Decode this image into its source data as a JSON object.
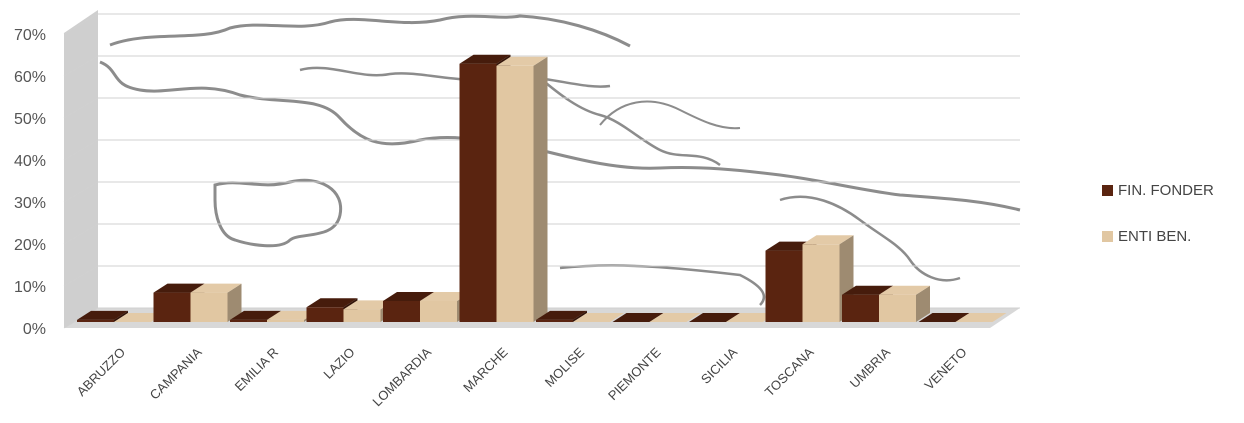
{
  "chart_data": {
    "type": "bar",
    "categories": [
      "ABRUZZO",
      "CAMPANIA",
      "EMILIA R",
      "LAZIO",
      "LOMBARDIA",
      "MARCHE",
      "MOLISE",
      "PIEMONTE",
      "SICILIA",
      "TOSCANA",
      "UMBRIA",
      "VENETO"
    ],
    "series": [
      {
        "name": "FIN. FONDER",
        "color": "#5a2410",
        "values": [
          0.5,
          7,
          0.5,
          3.5,
          5,
          61.5,
          0.5,
          0,
          0,
          17,
          6.5,
          0
        ]
      },
      {
        "name": "ENTI BEN.",
        "color": "#e1c7a2",
        "values": [
          0,
          7,
          0.5,
          3,
          5,
          61,
          0,
          0,
          0,
          18.5,
          6.5,
          0
        ]
      }
    ],
    "yticks": [
      "0%",
      "10%",
      "20%",
      "30%",
      "40%",
      "50%",
      "60%",
      "70%"
    ],
    "ylim": [
      0,
      70
    ],
    "title": "",
    "xlabel": "",
    "ylabel": "",
    "grid": true,
    "legend_position": "right",
    "background": "map-of-central-italy"
  }
}
